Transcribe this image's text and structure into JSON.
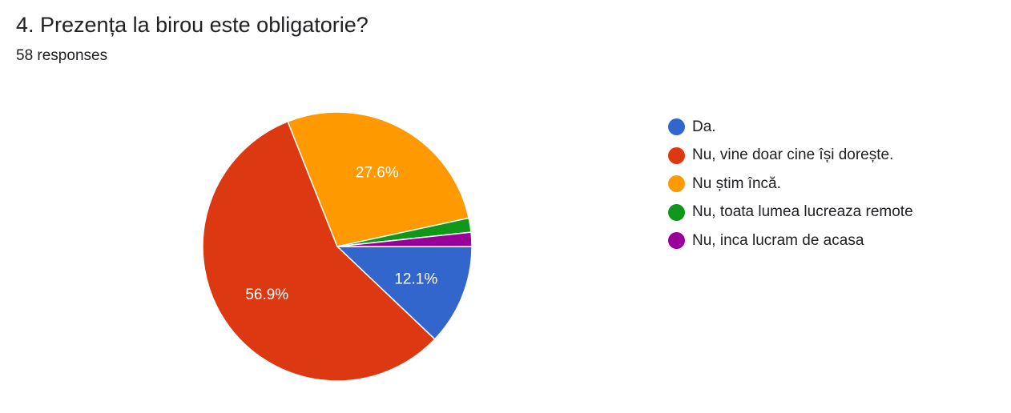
{
  "header": {
    "title": "4. Prezența la birou este obligatorie?",
    "responses": "58 responses"
  },
  "chart_data": {
    "type": "pie",
    "title": "4. Prezența la birou este obligatorie?",
    "categories": [
      "Da.",
      "Nu, vine doar cine își dorește.",
      "Nu știm încă.",
      "Nu, toata lumea lucreaza remote",
      "Nu, inca lucram de acasa"
    ],
    "values": [
      12.1,
      56.9,
      27.6,
      1.7,
      1.7
    ],
    "data_labels": [
      "12.1%",
      "56.9%",
      "27.6%",
      "",
      ""
    ],
    "colors": [
      "#3366cc",
      "#dc3912",
      "#ff9900",
      "#109618",
      "#990099"
    ],
    "legend": "right"
  }
}
